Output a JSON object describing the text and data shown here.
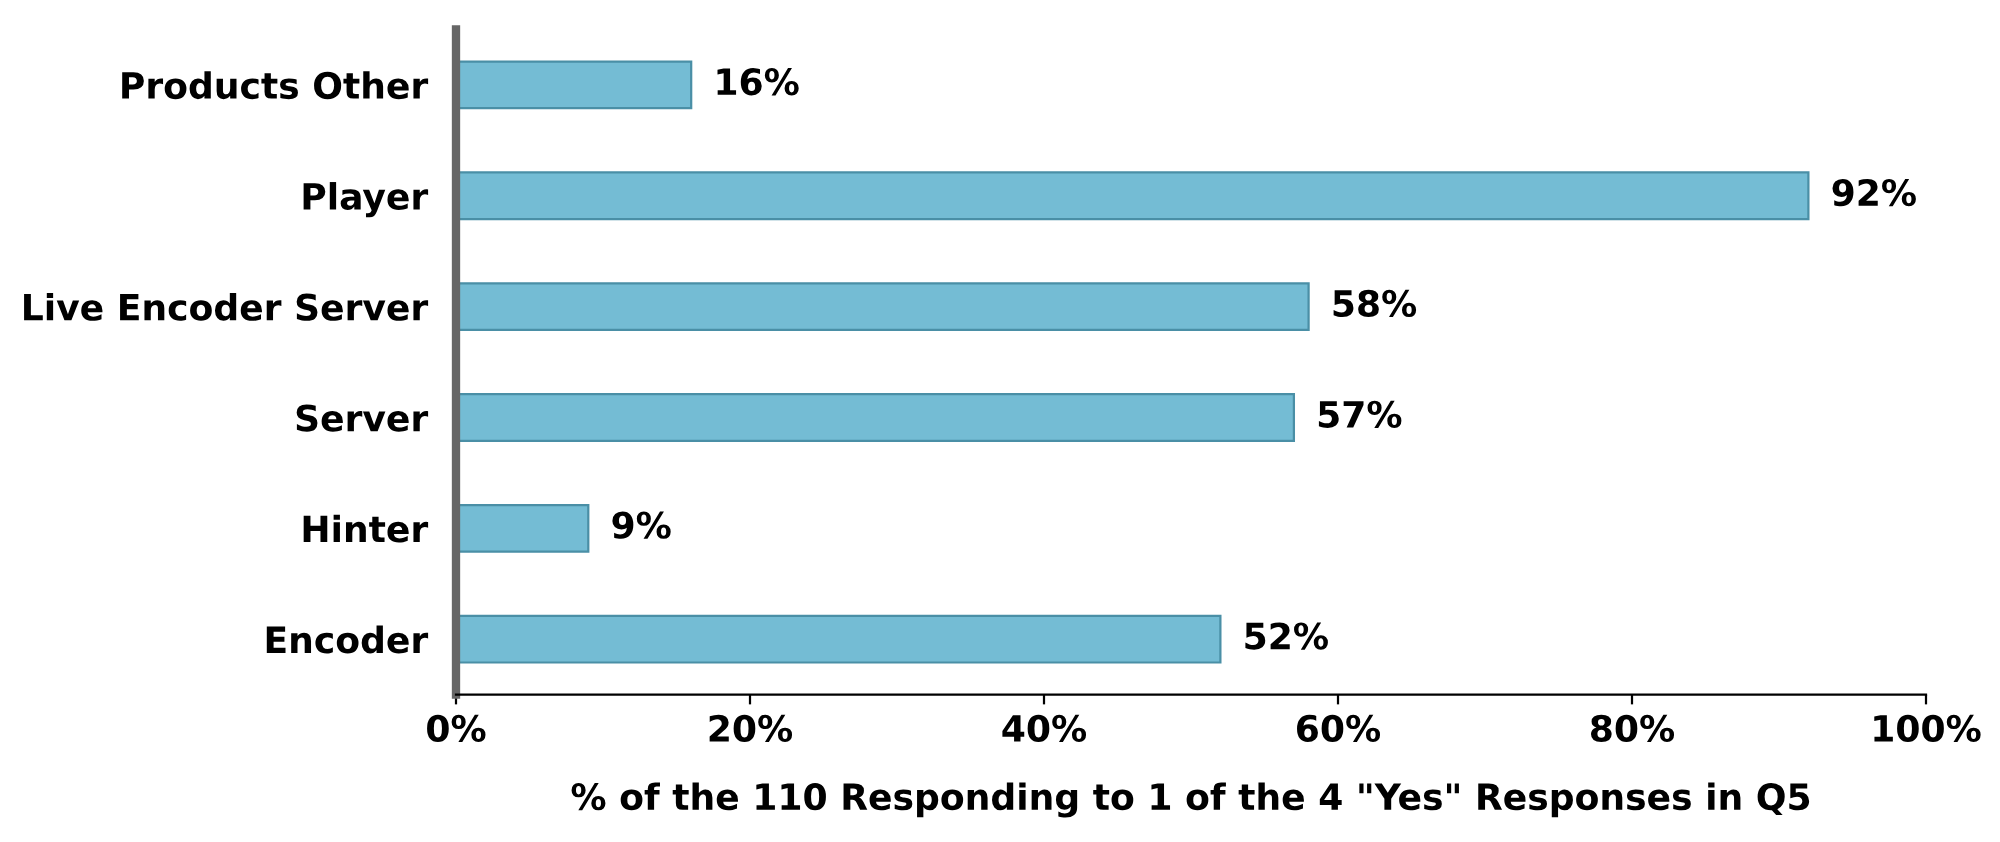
{
  "chart_data": {
    "type": "bar",
    "orientation": "horizontal",
    "xlabel": "% of the 110 Responding to 1 of the 4 \"Yes\" Responses in Q5",
    "categories": [
      "Products Other",
      "Player",
      "Live Encoder Server",
      "Server",
      "Hinter",
      "Encoder"
    ],
    "values": [
      16,
      92,
      58,
      57,
      9,
      52
    ],
    "value_labels": [
      "16%",
      "92%",
      "58%",
      "57%",
      "9%",
      "52%"
    ],
    "color": "#74bcd4",
    "xlim": [
      0,
      100
    ],
    "xticks": [
      {
        "value": 0,
        "label": "0%"
      },
      {
        "value": 20,
        "label": "20%"
      },
      {
        "value": 40,
        "label": "40%"
      },
      {
        "value": 60,
        "label": "60%"
      },
      {
        "value": 80,
        "label": "80%"
      },
      {
        "value": 100,
        "label": "100%"
      }
    ],
    "grid": false
  }
}
